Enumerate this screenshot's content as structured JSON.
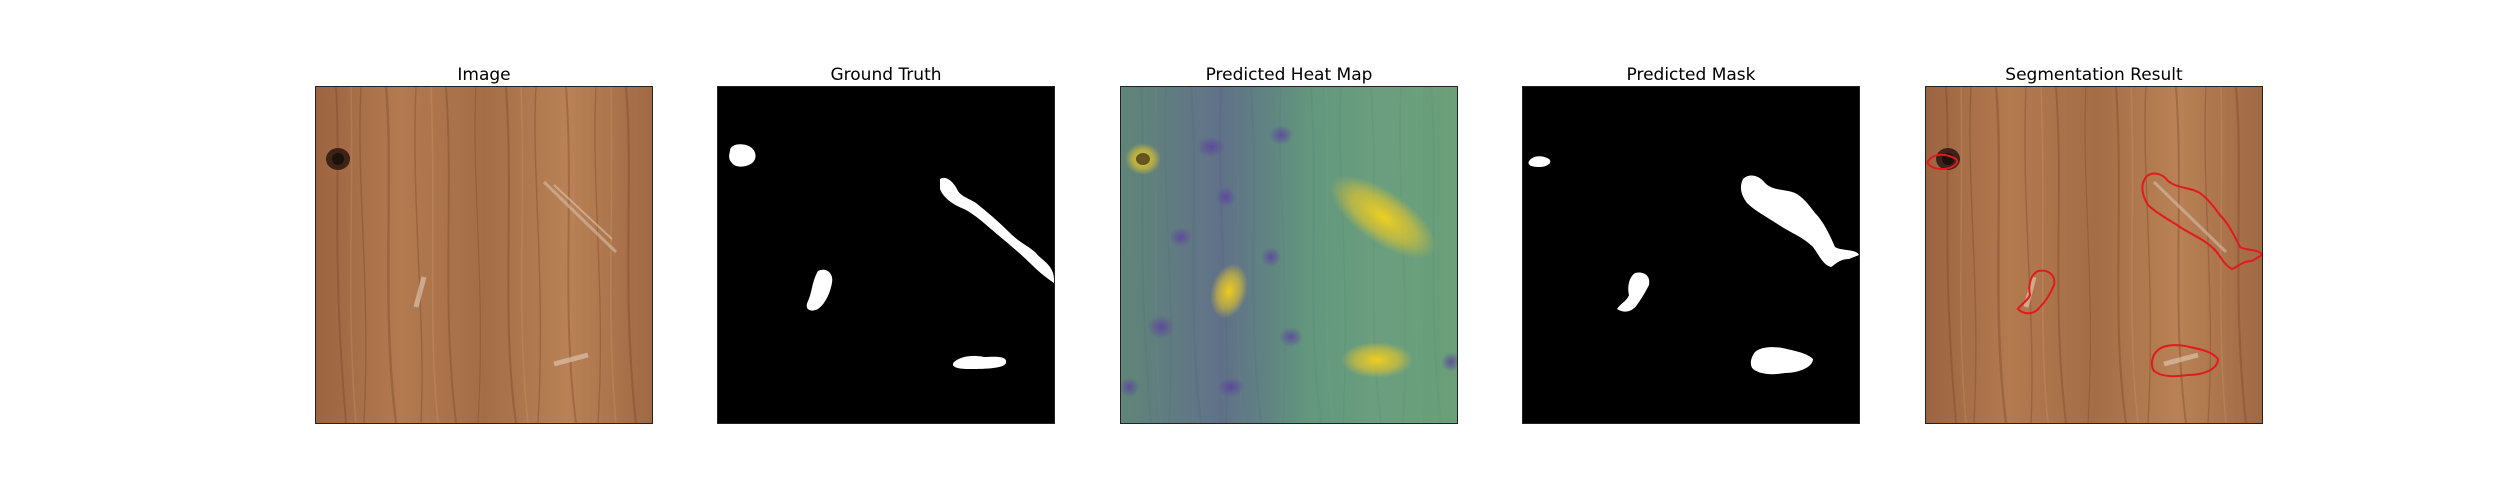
{
  "figure": {
    "panels": [
      {
        "title": "Image"
      },
      {
        "title": "Ground Truth"
      },
      {
        "title": "Predicted Heat Map"
      },
      {
        "title": "Predicted Mask"
      },
      {
        "title": "Segmentation Result"
      }
    ]
  },
  "colors": {
    "wood_base": "#a8704a",
    "wood_light": "#c48a5c",
    "wood_dark": "#7a4a2c",
    "mask_fg": "#ffffff",
    "mask_bg": "#000000",
    "heat_low": "#3b4f8f",
    "heat_mid": "#4fa38a",
    "heat_high": "#e8c520",
    "contour": "#e31a1c"
  }
}
